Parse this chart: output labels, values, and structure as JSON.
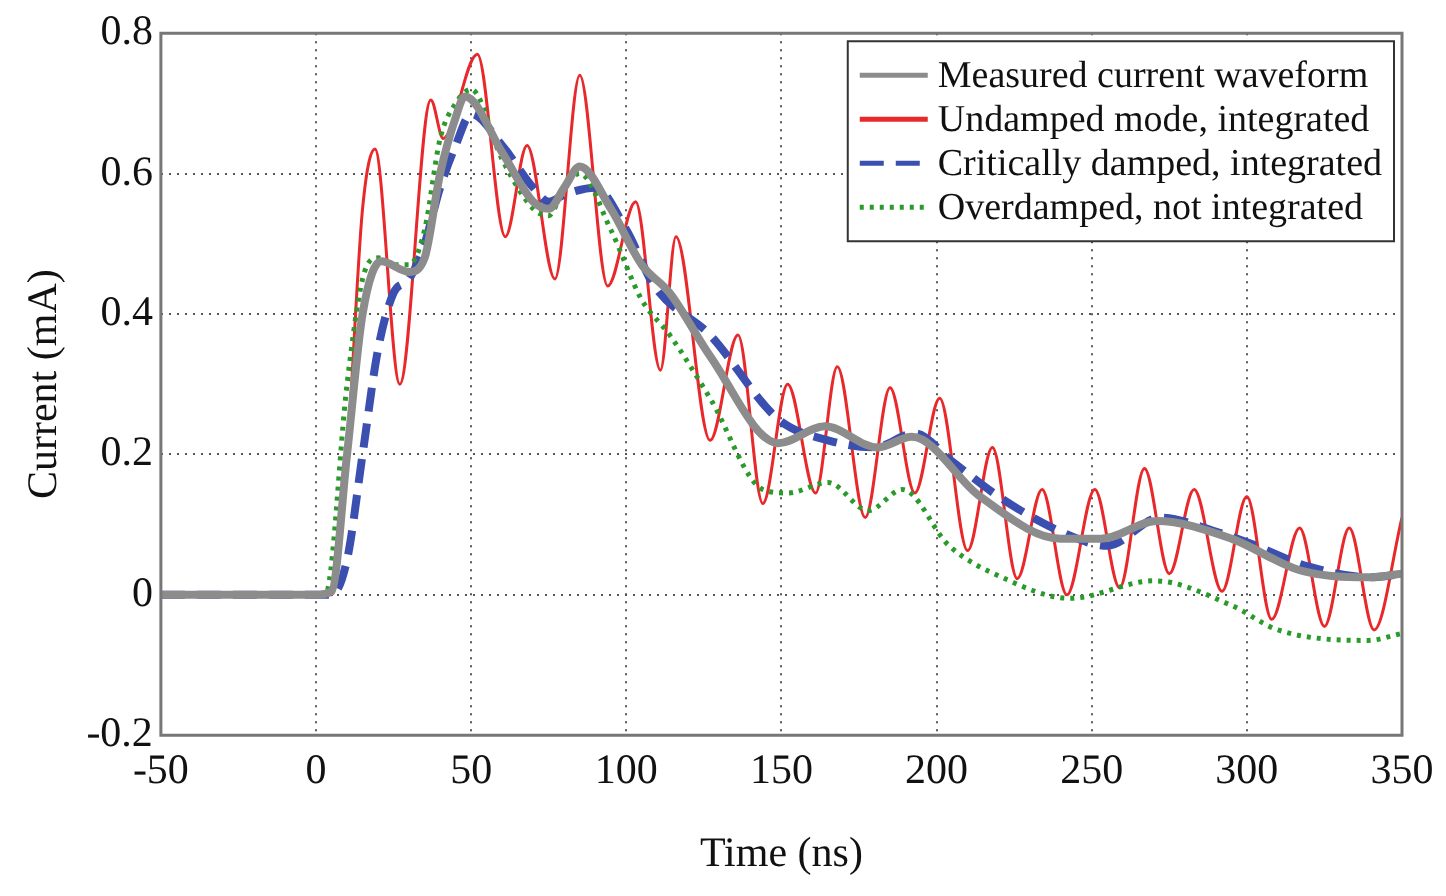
{
  "chart_data": {
    "type": "line",
    "xlabel": "Time (ns)",
    "ylabel": "Current (mA)",
    "xlim": [
      -50,
      350
    ],
    "xticks": [
      -50,
      0,
      50,
      100,
      150,
      200,
      250,
      300,
      350
    ],
    "ylim": [
      -0.2,
      0.8
    ],
    "yticks": [
      -0.2,
      0,
      0.2,
      0.4,
      0.6,
      0.8
    ],
    "grid": true,
    "legend": "top right",
    "marker": "none",
    "series": [
      {
        "name": "Measured current waveform",
        "color": "#8c8c8c",
        "line_style": "solid",
        "x": [
          -50,
          0,
          5,
          10,
          15,
          21,
          30,
          35,
          40,
          45,
          48,
          60,
          70,
          75,
          80,
          85,
          95,
          105,
          114,
          127,
          149,
          164,
          181,
          192,
          214,
          240,
          253,
          271,
          295,
          317,
          339,
          350
        ],
        "values": [
          0,
          0,
          0.005,
          0.2,
          0.4,
          0.475,
          0.46,
          0.48,
          0.6,
          0.68,
          0.71,
          0.63,
          0.56,
          0.55,
          0.58,
          0.61,
          0.55,
          0.47,
          0.43,
          0.34,
          0.216,
          0.24,
          0.21,
          0.225,
          0.14,
          0.08,
          0.08,
          0.105,
          0.08,
          0.035,
          0.025,
          0.03
        ]
      },
      {
        "name": "Undamped mode, integrated",
        "color": "#e8282a",
        "line_style": "solid",
        "x": [
          -50,
          0,
          5,
          10,
          15,
          19,
          27,
          37,
          41,
          52,
          61,
          68,
          77,
          85,
          94,
          103,
          111,
          116,
          127,
          136,
          144,
          152,
          161,
          168,
          177,
          185,
          193,
          201,
          210,
          218,
          226,
          234,
          242,
          251,
          259,
          267,
          275,
          283,
          292,
          300,
          308,
          317,
          325,
          333,
          341,
          350
        ],
        "values": [
          0,
          0,
          0,
          0.2,
          0.55,
          0.635,
          0.3,
          0.705,
          0.65,
          0.77,
          0.51,
          0.64,
          0.45,
          0.74,
          0.44,
          0.56,
          0.32,
          0.51,
          0.22,
          0.37,
          0.13,
          0.3,
          0.145,
          0.325,
          0.11,
          0.295,
          0.145,
          0.28,
          0.063,
          0.21,
          0.023,
          0.15,
          0,
          0.15,
          0.01,
          0.18,
          0.03,
          0.15,
          0.005,
          0.14,
          -0.035,
          0.095,
          -0.045,
          0.095,
          -0.05,
          0.11
        ]
      },
      {
        "name": "Critically damped, integrated",
        "color": "#3a4fb0",
        "line_style": "dashed",
        "x": [
          -50,
          0,
          5,
          10,
          15,
          20,
          25,
          30,
          35,
          40,
          45,
          50,
          60,
          70,
          75,
          80,
          90,
          100,
          109,
          127,
          149,
          165,
          180,
          193,
          205,
          220,
          240,
          255,
          272,
          290,
          300,
          320,
          340,
          350
        ],
        "values": [
          0,
          0,
          0,
          0.05,
          0.2,
          0.35,
          0.43,
          0.45,
          0.5,
          0.58,
          0.64,
          0.685,
          0.64,
          0.58,
          0.56,
          0.57,
          0.58,
          0.52,
          0.44,
          0.37,
          0.25,
          0.22,
          0.21,
          0.23,
          0.19,
          0.14,
          0.09,
          0.07,
          0.11,
          0.09,
          0.075,
          0.04,
          0.025,
          0.03
        ]
      },
      {
        "name": "Overdamped, not integrated",
        "color": "#2a9a2a",
        "line_style": "dotted",
        "x": [
          -50,
          0,
          3,
          10,
          15,
          20,
          25,
          30,
          35,
          40,
          45,
          50,
          60,
          70,
          75,
          80,
          85,
          95,
          105,
          114,
          127,
          144,
          152,
          165,
          178,
          189,
          204,
          221,
          243,
          270,
          295,
          310,
          339,
          350
        ],
        "values": [
          0,
          0,
          0,
          0.3,
          0.45,
          0.48,
          0.47,
          0.47,
          0.52,
          0.65,
          0.7,
          0.72,
          0.62,
          0.55,
          0.54,
          0.58,
          0.6,
          0.52,
          0.42,
          0.37,
          0.28,
          0.15,
          0.145,
          0.16,
          0.12,
          0.15,
          0.07,
          0.025,
          -0.005,
          0.02,
          -0.015,
          -0.05,
          -0.065,
          -0.055
        ]
      }
    ]
  }
}
